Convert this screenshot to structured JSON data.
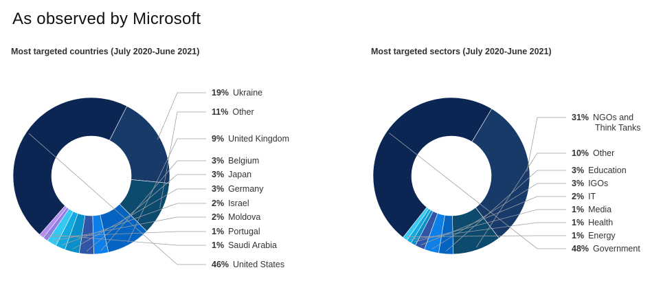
{
  "page": {
    "title": "As observed by Microsoft"
  },
  "chart_data": [
    {
      "type": "pie",
      "title": "Most targeted countries (July 2020-June 2021)",
      "slices": [
        {
          "label": "United States",
          "value": 46,
          "color": "#0b2653"
        },
        {
          "label": "Ukraine",
          "value": 19,
          "color": "#183a68"
        },
        {
          "label": "Other",
          "value": 11,
          "color": "#0c4a6e"
        },
        {
          "label": "United Kingdom",
          "value": 9,
          "color": "#0563c1"
        },
        {
          "label": "Belgium",
          "value": 3,
          "color": "#0e7ee8"
        },
        {
          "label": "Japan",
          "value": 3,
          "color": "#3155a6"
        },
        {
          "label": "Germany",
          "value": 3,
          "color": "#0b8fc9"
        },
        {
          "label": "Israel",
          "value": 2,
          "color": "#11a9e0"
        },
        {
          "label": "Moldova",
          "value": 2,
          "color": "#35c8f2"
        },
        {
          "label": "Portugal",
          "value": 1,
          "color": "#8f7de8"
        },
        {
          "label": "Saudi Arabia",
          "value": 1,
          "color": "#b48cf2"
        }
      ]
    },
    {
      "type": "pie",
      "title": "Most targeted sectors (July 2020-June 2021)",
      "slices": [
        {
          "label": "Government",
          "value": 48,
          "color": "#0b2653"
        },
        {
          "label": "NGOs and Think Tanks",
          "value": 31,
          "color": "#183a68"
        },
        {
          "label": "Other",
          "value": 10,
          "color": "#0c4a6e"
        },
        {
          "label": "Education",
          "value": 3,
          "color": "#0563c1"
        },
        {
          "label": "IGOs",
          "value": 3,
          "color": "#0e7ee8"
        },
        {
          "label": "IT",
          "value": 2,
          "color": "#3155a6"
        },
        {
          "label": "Media",
          "value": 1,
          "color": "#0b8fc9"
        },
        {
          "label": "Health",
          "value": 1,
          "color": "#11a9e0"
        },
        {
          "label": "Energy",
          "value": 1,
          "color": "#35c8f2"
        }
      ]
    }
  ]
}
